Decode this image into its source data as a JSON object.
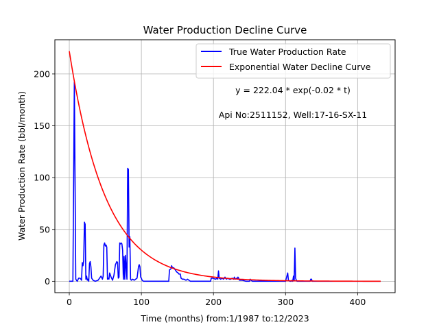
{
  "chart_data": {
    "type": "line",
    "title": "Water Production Decline Curve",
    "xlabel": "Time (months) from:1/1987 to:12/2023",
    "ylabel": "Water Production Rate (bbl/month)",
    "xlim": [
      -20,
      452
    ],
    "ylim": [
      -11,
      233
    ],
    "x_ticks": [
      0,
      100,
      200,
      300,
      400
    ],
    "y_ticks": [
      0,
      50,
      100,
      150,
      200
    ],
    "grid": true,
    "legend_position": "top-right",
    "annotations": [
      "y = 222.04 * exp(-0.02 * t)",
      "Api No:2511152, Well:17-16-SX-11"
    ],
    "series": [
      {
        "name": "True Water Production Rate",
        "color": "#0000ff",
        "points": [
          [
            0,
            0
          ],
          [
            5,
            0
          ],
          [
            7,
            192
          ],
          [
            9,
            2
          ],
          [
            11,
            0
          ],
          [
            13,
            3
          ],
          [
            15,
            3
          ],
          [
            17,
            1
          ],
          [
            18,
            18
          ],
          [
            19,
            15
          ],
          [
            20,
            20
          ],
          [
            21,
            57
          ],
          [
            22,
            55
          ],
          [
            23,
            2
          ],
          [
            24,
            5
          ],
          [
            25,
            1
          ],
          [
            26,
            2
          ],
          [
            27,
            0
          ],
          [
            28,
            17
          ],
          [
            29,
            19
          ],
          [
            30,
            14
          ],
          [
            31,
            3
          ],
          [
            32,
            2
          ],
          [
            33,
            1
          ],
          [
            36,
            0
          ],
          [
            40,
            1
          ],
          [
            42,
            3
          ],
          [
            44,
            5
          ],
          [
            46,
            2
          ],
          [
            47,
            5
          ],
          [
            48,
            35
          ],
          [
            49,
            37
          ],
          [
            50,
            34
          ],
          [
            51,
            35
          ],
          [
            52,
            33
          ],
          [
            53,
            2
          ],
          [
            54,
            3
          ],
          [
            55,
            2
          ],
          [
            56,
            8
          ],
          [
            57,
            6
          ],
          [
            58,
            4
          ],
          [
            60,
            1
          ],
          [
            62,
            6
          ],
          [
            64,
            16
          ],
          [
            66,
            19
          ],
          [
            67,
            18
          ],
          [
            68,
            3
          ],
          [
            69,
            4
          ],
          [
            70,
            37
          ],
          [
            71,
            36
          ],
          [
            72,
            37
          ],
          [
            73,
            36
          ],
          [
            74,
            30
          ],
          [
            75,
            2
          ],
          [
            76,
            24
          ],
          [
            77,
            2
          ],
          [
            78,
            25
          ],
          [
            79,
            13
          ],
          [
            80,
            2
          ],
          [
            81,
            109
          ],
          [
            82,
            108
          ],
          [
            83,
            33
          ],
          [
            84,
            43
          ],
          [
            85,
            2
          ],
          [
            86,
            1
          ],
          [
            88,
            2
          ],
          [
            90,
            1
          ],
          [
            92,
            2
          ],
          [
            94,
            3
          ],
          [
            96,
            14
          ],
          [
            97,
            16
          ],
          [
            98,
            14
          ],
          [
            99,
            4
          ],
          [
            100,
            3
          ],
          [
            101,
            1
          ],
          [
            103,
            0
          ],
          [
            107,
            0
          ],
          [
            120,
            0
          ],
          [
            130,
            0
          ],
          [
            138,
            0
          ],
          [
            139,
            11
          ],
          [
            141,
            12
          ],
          [
            142,
            15
          ],
          [
            143,
            13
          ],
          [
            145,
            13
          ],
          [
            147,
            11
          ],
          [
            149,
            9
          ],
          [
            151,
            8
          ],
          [
            152,
            7
          ],
          [
            154,
            7
          ],
          [
            155,
            3
          ],
          [
            157,
            2
          ],
          [
            159,
            2
          ],
          [
            162,
            1
          ],
          [
            164,
            2
          ],
          [
            166,
            1
          ],
          [
            168,
            0
          ],
          [
            180,
            0
          ],
          [
            196,
            0
          ],
          [
            197,
            3
          ],
          [
            199,
            3
          ],
          [
            203,
            2
          ],
          [
            205,
            3
          ],
          [
            206,
            2
          ],
          [
            207,
            10
          ],
          [
            208,
            3
          ],
          [
            210,
            2
          ],
          [
            212,
            3
          ],
          [
            214,
            2
          ],
          [
            216,
            4
          ],
          [
            218,
            2
          ],
          [
            220,
            3
          ],
          [
            222,
            2
          ],
          [
            224,
            2
          ],
          [
            226,
            3
          ],
          [
            228,
            2
          ],
          [
            229,
            4
          ],
          [
            230,
            2
          ],
          [
            232,
            3
          ],
          [
            233,
            2
          ],
          [
            234,
            4
          ],
          [
            235,
            3
          ],
          [
            236,
            1
          ],
          [
            238,
            1
          ],
          [
            240,
            1
          ],
          [
            245,
            0
          ],
          [
            250,
            0
          ],
          [
            251,
            2
          ],
          [
            252,
            1
          ],
          [
            254,
            0
          ],
          [
            270,
            0
          ],
          [
            290,
            0
          ],
          [
            300,
            0
          ],
          [
            303,
            8
          ],
          [
            304,
            1
          ],
          [
            306,
            0
          ],
          [
            308,
            0
          ],
          [
            309,
            1
          ],
          [
            310,
            0
          ],
          [
            311,
            5
          ],
          [
            312,
            1
          ],
          [
            313,
            32
          ],
          [
            314,
            3
          ],
          [
            315,
            1
          ],
          [
            316,
            0
          ],
          [
            320,
            0
          ],
          [
            330,
            0
          ],
          [
            334,
            0
          ],
          [
            335,
            2
          ],
          [
            336,
            2
          ],
          [
            337,
            0
          ],
          [
            345,
            0
          ],
          [
            360,
            0
          ],
          [
            380,
            0
          ],
          [
            400,
            0
          ],
          [
            420,
            0
          ],
          [
            432,
            0
          ]
        ]
      },
      {
        "name": "Exponential Water Decline Curve",
        "color": "#ff0000",
        "formula": "y = 222.04 * exp(-0.02 * t)",
        "a": 222.04,
        "b": 0.02,
        "x_range": [
          0,
          432
        ]
      }
    ]
  }
}
